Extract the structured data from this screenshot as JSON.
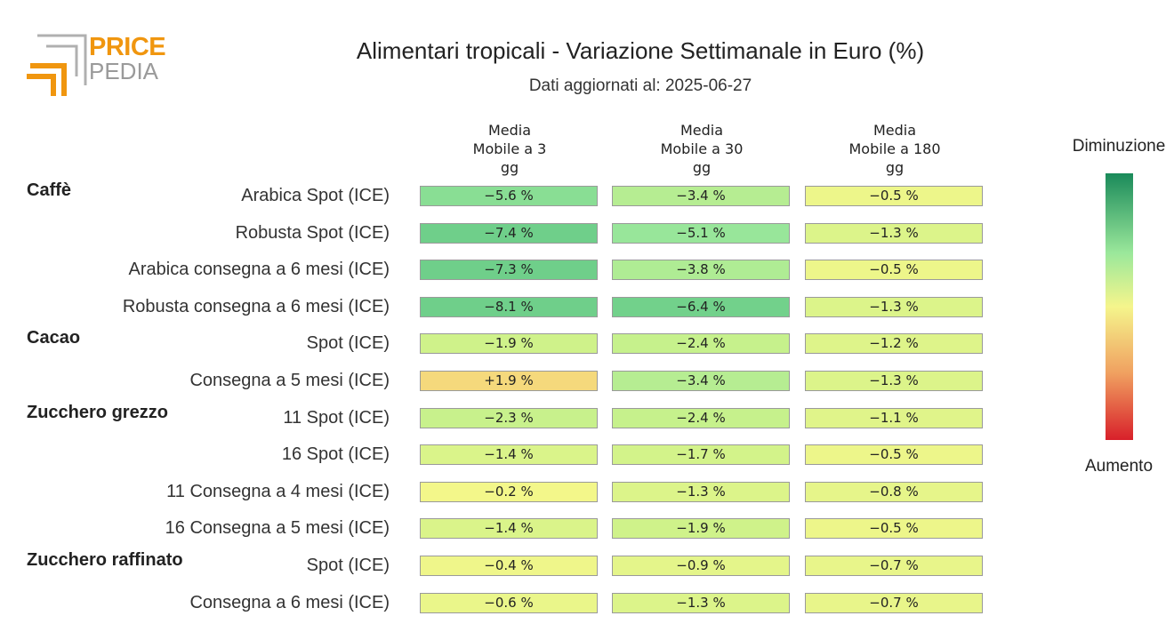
{
  "header": {
    "logo_price": "PRICE",
    "logo_pedia": "PEDIA",
    "title": "Alimentari tropicali - Variazione Settimanale in Euro (%)",
    "subtitle": "Dati aggiornati al: 2025-06-27"
  },
  "legend": {
    "top_label": "Diminuzione",
    "bottom_label": "Aumento",
    "colors": [
      "#1a8a5a",
      "#9be89b",
      "#f5f58c",
      "#f0a060",
      "#d8202a"
    ]
  },
  "chart_data": {
    "type": "heatmap",
    "title": "Alimentari tropicali - Variazione Settimanale in Euro (%)",
    "columns": [
      "Media\nMobile a 3\ngg",
      "Media\nMobile a 30\ngg",
      "Media\nMobile a 180\ngg"
    ],
    "groups": [
      {
        "name": "Caffè",
        "rows": [
          {
            "label": "Arabica Spot (ICE)",
            "values": [
              -5.6,
              -3.4,
              -0.5
            ],
            "text": [
              "−5.6 %",
              "−3.4 %",
              "−0.5 %"
            ]
          },
          {
            "label": "Robusta Spot (ICE)",
            "values": [
              -7.4,
              -5.1,
              -1.3
            ],
            "text": [
              "−7.4 %",
              "−5.1 %",
              "−1.3 %"
            ]
          },
          {
            "label": "Arabica consegna a 6 mesi (ICE)",
            "values": [
              -7.3,
              -3.8,
              -0.5
            ],
            "text": [
              "−7.3 %",
              "−3.8 %",
              "−0.5 %"
            ]
          },
          {
            "label": "Robusta consegna a 6 mesi (ICE)",
            "values": [
              -8.1,
              -6.4,
              -1.3
            ],
            "text": [
              "−8.1 %",
              "−6.4 %",
              "−1.3 %"
            ]
          }
        ]
      },
      {
        "name": "Cacao",
        "rows": [
          {
            "label": "Spot (ICE)",
            "values": [
              -1.9,
              -2.4,
              -1.2
            ],
            "text": [
              "−1.9 %",
              "−2.4 %",
              "−1.2 %"
            ]
          },
          {
            "label": "Consegna a 5 mesi (ICE)",
            "values": [
              1.9,
              -3.4,
              -1.3
            ],
            "text": [
              "+1.9 %",
              "−3.4 %",
              "−1.3 %"
            ]
          }
        ]
      },
      {
        "name": "Zucchero grezzo",
        "rows": [
          {
            "label": "11 Spot (ICE)",
            "values": [
              -2.3,
              -2.4,
              -1.1
            ],
            "text": [
              "−2.3 %",
              "−2.4 %",
              "−1.1 %"
            ]
          },
          {
            "label": "16 Spot (ICE)",
            "values": [
              -1.4,
              -1.7,
              -0.5
            ],
            "text": [
              "−1.4 %",
              "−1.7 %",
              "−0.5 %"
            ]
          },
          {
            "label": "11 Consegna a 4 mesi (ICE)",
            "values": [
              -0.2,
              -1.3,
              -0.8
            ],
            "text": [
              "−0.2 %",
              "−1.3 %",
              "−0.8 %"
            ]
          },
          {
            "label": "16 Consegna a 5 mesi (ICE)",
            "values": [
              -1.4,
              -1.9,
              -0.5
            ],
            "text": [
              "−1.4 %",
              "−1.9 %",
              "−0.5 %"
            ]
          }
        ]
      },
      {
        "name": "Zucchero raffinato",
        "rows": [
          {
            "label": "Spot (ICE)",
            "values": [
              -0.4,
              -0.9,
              -0.7
            ],
            "text": [
              "−0.4 %",
              "−0.9 %",
              "−0.7 %"
            ]
          },
          {
            "label": "Consegna a 6 mesi (ICE)",
            "values": [
              -0.6,
              -1.3,
              -0.7
            ],
            "text": [
              "−0.6 %",
              "−1.3 %",
              "−0.7 %"
            ]
          }
        ]
      }
    ]
  }
}
